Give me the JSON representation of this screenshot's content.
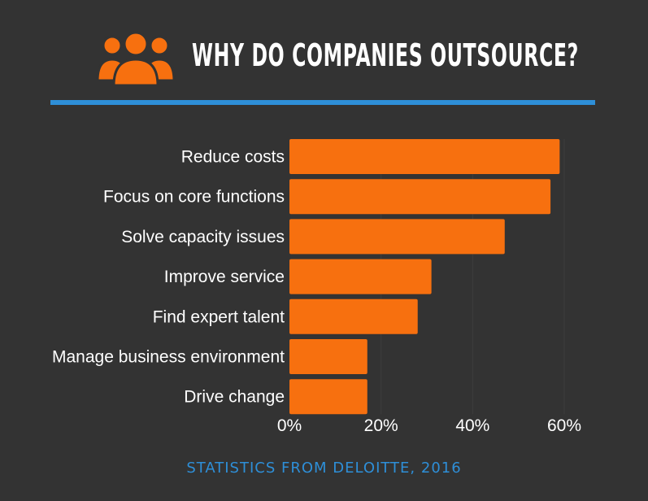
{
  "header": {
    "title": "WHY DO COMPANIES OUTSOURCE?",
    "icon": "group-of-people-icon"
  },
  "footer": {
    "source": "STATISTICS FROM DELOITTE, 2016"
  },
  "colors": {
    "background": "#333333",
    "bar": "#f7700f",
    "rule": "#2e8fd8",
    "text": "#ffffff",
    "source": "#2e8fd8",
    "icon_fill": "#f7700f"
  },
  "chart_data": {
    "type": "bar",
    "orientation": "horizontal",
    "title": "WHY DO COMPANIES OUTSOURCE?",
    "categories": [
      "Reduce costs",
      "Focus on core functions",
      "Solve capacity issues",
      "Improve service",
      "Find expert talent",
      "Manage business environment",
      "Drive change"
    ],
    "values": [
      59,
      57,
      47,
      31,
      28,
      17,
      17
    ],
    "xlim": [
      0,
      60
    ],
    "xticks": [
      0,
      20,
      40,
      60
    ],
    "xtick_labels": [
      "0%",
      "20%",
      "40%",
      "60%"
    ],
    "xlabel": "",
    "ylabel": "",
    "unit": "%"
  }
}
